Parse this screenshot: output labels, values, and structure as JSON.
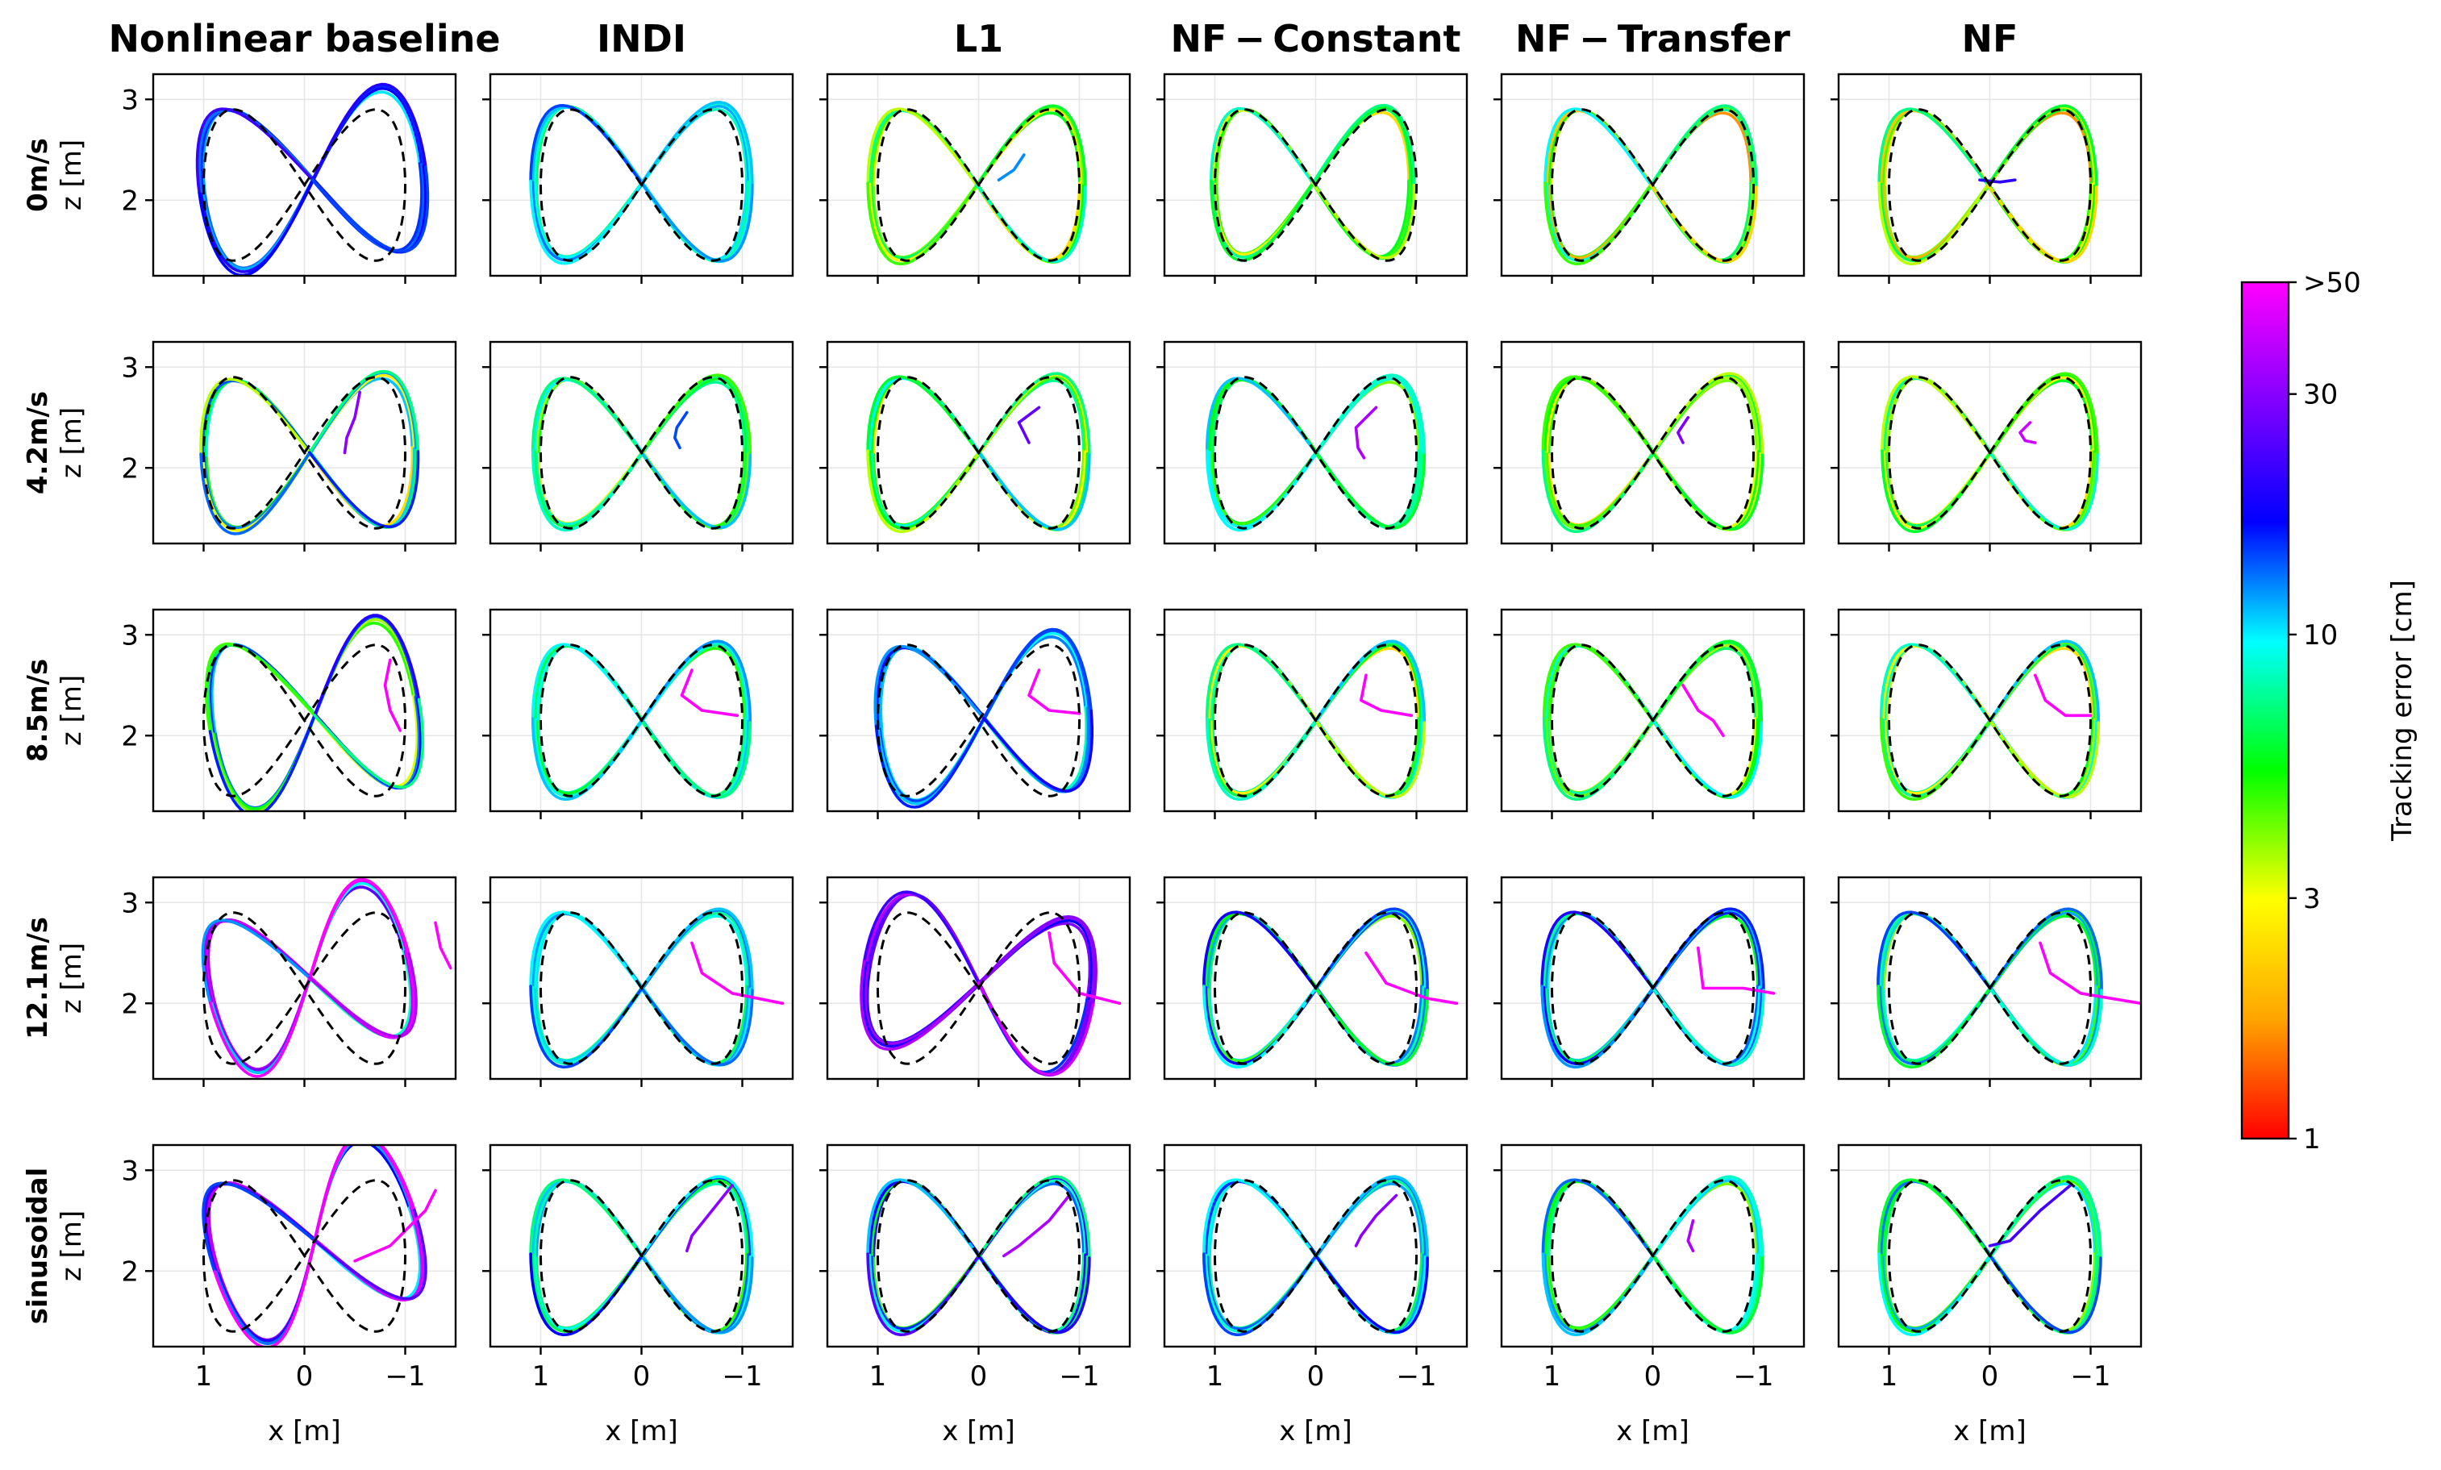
{
  "chart_data": {
    "type": "line",
    "column_titles": [
      "Nonlinear baseline",
      "INDI",
      "L1",
      "NF − Constant",
      "NF − Transfer",
      "NF"
    ],
    "row_titles": [
      "0m/s",
      "4.2m/s",
      "8.5m/s",
      "12.1m/s",
      "sinusoidal"
    ],
    "xlabel": "x [m]",
    "ylabel": "z [m]",
    "x_ticks": [
      1,
      0,
      -1
    ],
    "x_tick_labels": [
      "1",
      "0",
      "−1"
    ],
    "xlim": [
      1.5,
      -1.5
    ],
    "y_ticks": [
      2,
      3
    ],
    "y_tick_labels": [
      "2",
      "3"
    ],
    "ylim": [
      1.25,
      3.25
    ],
    "grid": true,
    "reference": {
      "cx": 0,
      "cz": 2.15,
      "ax": 1.0,
      "az": 0.75
    },
    "colorbar": {
      "label": "Tracking error [cm]",
      "scale": "log",
      "range": [
        1,
        50
      ],
      "ticks": [
        1,
        3,
        10,
        30,
        50
      ],
      "tick_labels": [
        "1",
        "3",
        "10",
        "30",
        ">50"
      ]
    },
    "panels": [
      [
        {
          "sx": 1.12,
          "sz": 1.1,
          "dx": -0.08,
          "dz": 0.05,
          "rot": -0.22,
          "err": [
            14,
            16,
            12,
            18
          ],
          "tail": null
        },
        {
          "sx": 1.07,
          "sz": 1.02,
          "dx": 0.0,
          "dz": 0.02,
          "rot": 0.0,
          "err": [
            8,
            9,
            10,
            12
          ],
          "tail": null
        },
        {
          "sx": 1.05,
          "sz": 1.0,
          "dx": 0.02,
          "dz": 0.0,
          "rot": 0.0,
          "err": [
            4,
            5,
            7,
            3
          ],
          "tail": {
            "x": [
              -0.2,
              -0.35,
              -0.45
            ],
            "z": [
              2.2,
              2.3,
              2.45
            ],
            "err": 12
          }
        },
        {
          "sx": 0.98,
          "sz": 0.98,
          "dx": 0.03,
          "dz": 0.02,
          "rot": 0.0,
          "err": [
            5,
            6,
            3,
            7
          ],
          "tail": null
        },
        {
          "sx": 1.02,
          "sz": 1.0,
          "dx": 0.02,
          "dz": 0.0,
          "rot": 0.0,
          "err": [
            4,
            6,
            2,
            8
          ],
          "tail": null
        },
        {
          "sx": 1.05,
          "sz": 1.0,
          "dx": 0.02,
          "dz": 0.0,
          "rot": 0.0,
          "err": [
            3,
            5,
            2,
            6
          ],
          "tail": {
            "x": [
              0.1,
              -0.1,
              -0.25
            ],
            "z": [
              2.2,
              2.18,
              2.2
            ],
            "err": 20
          }
        }
      ],
      [
        {
          "sx": 1.05,
          "sz": 1.0,
          "dx": -0.05,
          "dz": 0.0,
          "rot": -0.05,
          "err": [
            11,
            6,
            13,
            3
          ],
          "tail": {
            "x": [
              -0.55,
              -0.5,
              -0.42,
              -0.4
            ],
            "z": [
              2.75,
              2.5,
              2.3,
              2.15
            ],
            "err": 30
          }
        },
        {
          "sx": 1.05,
          "sz": 0.98,
          "dx": 0.0,
          "dz": 0.0,
          "rot": 0.0,
          "err": [
            7,
            4,
            9,
            6
          ],
          "tail": {
            "x": [
              -0.45,
              -0.35,
              -0.33,
              -0.38
            ],
            "z": [
              2.55,
              2.4,
              2.3,
              2.2
            ],
            "err": 14
          }
        },
        {
          "sx": 1.07,
          "sz": 1.0,
          "dx": 0.0,
          "dz": 0.0,
          "rot": 0.0,
          "err": [
            3,
            6,
            9,
            5
          ],
          "tail": {
            "x": [
              -0.6,
              -0.4,
              -0.45,
              -0.5
            ],
            "z": [
              2.6,
              2.45,
              2.35,
              2.25
            ],
            "err": 25
          }
        },
        {
          "sx": 1.05,
          "sz": 0.98,
          "dx": 0.0,
          "dz": 0.0,
          "rot": 0.0,
          "err": [
            8,
            7,
            5,
            9
          ],
          "tail": {
            "x": [
              -0.6,
              -0.4,
              -0.42,
              -0.48
            ],
            "z": [
              2.6,
              2.4,
              2.2,
              2.1
            ],
            "err": 35
          }
        },
        {
          "sx": 1.06,
          "sz": 1.0,
          "dx": 0.0,
          "dz": 0.0,
          "rot": 0.0,
          "err": [
            6,
            3,
            5,
            4
          ],
          "tail": {
            "x": [
              -0.35,
              -0.25,
              -0.3
            ],
            "z": [
              2.5,
              2.35,
              2.25
            ],
            "err": 28
          }
        },
        {
          "sx": 1.04,
          "sz": 1.0,
          "dx": 0.0,
          "dz": 0.0,
          "rot": 0.0,
          "err": [
            5,
            4,
            7,
            3
          ],
          "tail": {
            "x": [
              -0.4,
              -0.3,
              -0.35,
              -0.45
            ],
            "z": [
              2.45,
              2.35,
              2.27,
              2.25
            ],
            "err": 40
          }
        }
      ],
      [
        {
          "sx": 1.05,
          "sz": 1.15,
          "dx": -0.1,
          "dz": 0.05,
          "rot": -0.28,
          "err": [
            13,
            16,
            6,
            4
          ],
          "tail": {
            "x": [
              -0.85,
              -0.8,
              -0.85,
              -0.95
            ],
            "z": [
              2.75,
              2.5,
              2.25,
              2.05
            ],
            "err": 50
          }
        },
        {
          "sx": 1.05,
          "sz": 1.0,
          "dx": 0.0,
          "dz": 0.0,
          "rot": 0.0,
          "err": [
            9,
            10,
            6,
            8
          ],
          "tail": {
            "x": [
              -0.5,
              -0.4,
              -0.6,
              -0.95
            ],
            "z": [
              2.65,
              2.4,
              2.25,
              2.2
            ],
            "err": 50
          }
        },
        {
          "sx": 1.05,
          "sz": 1.05,
          "dx": -0.05,
          "dz": 0.02,
          "rot": -0.15,
          "err": [
            13,
            12,
            15,
            10
          ],
          "tail": {
            "x": [
              -0.6,
              -0.5,
              -0.7,
              -1.0
            ],
            "z": [
              2.65,
              2.4,
              2.25,
              2.22
            ],
            "err": 50
          }
        },
        {
          "sx": 1.05,
          "sz": 1.0,
          "dx": 0.0,
          "dz": 0.0,
          "rot": 0.0,
          "err": [
            7,
            9,
            3,
            6
          ],
          "tail": {
            "x": [
              -0.5,
              -0.45,
              -0.65,
              -0.95
            ],
            "z": [
              2.6,
              2.35,
              2.25,
              2.2
            ],
            "err": 50
          }
        },
        {
          "sx": 1.05,
          "sz": 1.0,
          "dx": 0.0,
          "dz": 0.0,
          "rot": 0.0,
          "err": [
            6,
            5,
            8,
            4
          ],
          "tail": {
            "x": [
              -0.3,
              -0.45,
              -0.6,
              -0.7
            ],
            "z": [
              2.5,
              2.25,
              2.15,
              2.0
            ],
            "err": 50
          }
        },
        {
          "sx": 1.05,
          "sz": 1.0,
          "dx": 0.0,
          "dz": 0.0,
          "rot": 0.0,
          "err": [
            4,
            9,
            3,
            7
          ],
          "tail": {
            "x": [
              -0.45,
              -0.55,
              -0.75,
              -1.0
            ],
            "z": [
              2.6,
              2.35,
              2.2,
              2.2
            ],
            "err": 50
          }
        }
      ],
      [
        {
          "sx": 1.05,
          "sz": 1.1,
          "dx": -0.05,
          "dz": 0.1,
          "rot": -0.42,
          "err": [
            40,
            45,
            30,
            10
          ],
          "tail": {
            "x": [
              -1.3,
              -1.35,
              -1.45
            ],
            "z": [
              2.8,
              2.55,
              2.35
            ],
            "err": 50
          }
        },
        {
          "sx": 1.07,
          "sz": 1.0,
          "dx": 0.0,
          "dz": 0.0,
          "rot": 0.0,
          "err": [
            12,
            9,
            11,
            8
          ],
          "tail": {
            "x": [
              -0.5,
              -0.6,
              -0.9,
              -1.4
            ],
            "z": [
              2.6,
              2.3,
              2.1,
              2.0
            ],
            "err": 50
          }
        },
        {
          "sx": 1.15,
          "sz": 1.05,
          "dx": 0.0,
          "dz": 0.05,
          "rot": 0.28,
          "err": [
            30,
            25,
            35,
            18
          ],
          "tail": {
            "x": [
              -0.7,
              -0.75,
              -1.0,
              -1.4
            ],
            "z": [
              2.7,
              2.4,
              2.1,
              2.0
            ],
            "err": 50
          }
        },
        {
          "sx": 1.08,
          "sz": 1.0,
          "dx": 0.0,
          "dz": 0.0,
          "rot": 0.0,
          "err": [
            8,
            12,
            5,
            15
          ],
          "tail": {
            "x": [
              -0.5,
              -0.7,
              -1.1,
              -1.4
            ],
            "z": [
              2.5,
              2.2,
              2.05,
              2.0
            ],
            "err": 50
          }
        },
        {
          "sx": 1.07,
          "sz": 1.0,
          "dx": 0.0,
          "dz": 0.0,
          "rot": 0.0,
          "err": [
            10,
            13,
            7,
            16
          ],
          "tail": {
            "x": [
              -0.45,
              -0.5,
              -0.9,
              -1.2
            ],
            "z": [
              2.55,
              2.15,
              2.15,
              2.1
            ],
            "err": 50
          }
        },
        {
          "sx": 1.08,
          "sz": 1.0,
          "dx": 0.0,
          "dz": 0.0,
          "rot": 0.0,
          "err": [
            5,
            11,
            7,
            12
          ],
          "tail": {
            "x": [
              -0.5,
              -0.6,
              -0.9,
              -1.5
            ],
            "z": [
              2.6,
              2.3,
              2.1,
              2.0
            ],
            "err": 50
          }
        }
      ],
      [
        {
          "sx": 1.1,
          "sz": 1.2,
          "dx": -0.1,
          "dz": 0.15,
          "rot": -0.5,
          "err": [
            45,
            40,
            20,
            12
          ],
          "tail": {
            "x": [
              -0.5,
              -0.85,
              -1.2,
              -1.3
            ],
            "z": [
              2.1,
              2.25,
              2.6,
              2.8
            ],
            "err": 50
          }
        },
        {
          "sx": 1.07,
          "sz": 1.0,
          "dx": 0.0,
          "dz": 0.0,
          "rot": 0.0,
          "err": [
            14,
            8,
            10,
            6
          ],
          "tail": {
            "x": [
              -0.9,
              -0.7,
              -0.5,
              -0.45
            ],
            "z": [
              2.85,
              2.6,
              2.35,
              2.2
            ],
            "err": 30
          }
        },
        {
          "sx": 1.07,
          "sz": 1.0,
          "dx": 0.0,
          "dz": 0.0,
          "rot": 0.0,
          "err": [
            20,
            6,
            16,
            9
          ],
          "tail": {
            "x": [
              -0.9,
              -0.7,
              -0.4,
              -0.25
            ],
            "z": [
              2.75,
              2.5,
              2.25,
              2.15
            ],
            "err": 35
          }
        },
        {
          "sx": 1.08,
          "sz": 1.0,
          "dx": 0.0,
          "dz": 0.0,
          "rot": 0.0,
          "err": [
            12,
            9,
            14,
            8
          ],
          "tail": {
            "x": [
              -0.8,
              -0.6,
              -0.45,
              -0.4
            ],
            "z": [
              2.75,
              2.55,
              2.35,
              2.25
            ],
            "err": 30
          }
        },
        {
          "sx": 1.06,
          "sz": 1.0,
          "dx": 0.0,
          "dz": 0.0,
          "rot": 0.0,
          "err": [
            9,
            7,
            5,
            11
          ],
          "tail": {
            "x": [
              -0.4,
              -0.35,
              -0.4
            ],
            "z": [
              2.5,
              2.3,
              2.2
            ],
            "err": 35
          }
        },
        {
          "sx": 1.07,
          "sz": 1.0,
          "dx": 0.0,
          "dz": 0.0,
          "rot": 0.0,
          "err": [
            8,
            6,
            12,
            5
          ],
          "tail": {
            "x": [
              -0.8,
              -0.5,
              -0.2,
              0.0
            ],
            "z": [
              2.85,
              2.6,
              2.3,
              2.25
            ],
            "err": 22
          }
        }
      ]
    ]
  },
  "colors": {
    "reference": "#000000",
    "grid": "#e6e6e6",
    "colormap": [
      "#ff0000",
      "#ffa500",
      "#ffff00",
      "#00ff00",
      "#00ffff",
      "#0000ff",
      "#8000ff",
      "#ff00ff"
    ]
  }
}
